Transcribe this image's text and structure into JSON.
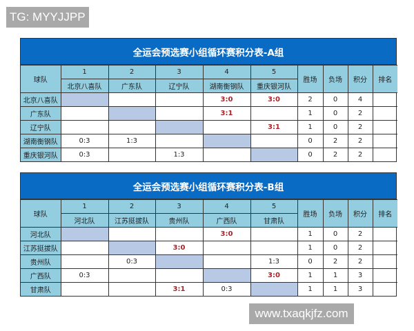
{
  "watermark_top": "TG: MYYJJPP",
  "watermark_bottom": "www.txaqkjfz.com",
  "colors": {
    "title_bg": "#0a6bc4",
    "header_bg": "#93cde0",
    "diagonal": "#b8c9e6",
    "win_score": "#a8222a"
  },
  "headers": {
    "team": "球队",
    "wins": "胜场",
    "losses": "负场",
    "points": "积分",
    "rank": "排名",
    "numbers": [
      "1",
      "2",
      "3",
      "4",
      "5"
    ]
  },
  "tables": [
    {
      "title": "全运会预选赛小组循环赛积分表-A组",
      "teams": [
        "北京八喜队",
        "广东队",
        "辽宁队",
        "湖南衡钢队",
        "重庆银河队"
      ],
      "rows": [
        {
          "team": "北京八喜队",
          "results": [
            "",
            "",
            "",
            "3:0",
            "3:0"
          ],
          "wins": "2",
          "losses": "0",
          "points": "4",
          "rank": ""
        },
        {
          "team": "广东队",
          "results": [
            "",
            "",
            "",
            "3:1",
            ""
          ],
          "wins": "1",
          "losses": "0",
          "points": "2",
          "rank": ""
        },
        {
          "team": "辽宁队",
          "results": [
            "",
            "",
            "",
            "",
            "3:1"
          ],
          "wins": "1",
          "losses": "0",
          "points": "2",
          "rank": ""
        },
        {
          "team": "湖南衡钢队",
          "results": [
            "0:3",
            "1:3",
            "",
            "",
            ""
          ],
          "wins": "0",
          "losses": "2",
          "points": "2",
          "rank": ""
        },
        {
          "team": "重庆银河队",
          "results": [
            "0:3",
            "",
            "1:3",
            "",
            ""
          ],
          "wins": "0",
          "losses": "2",
          "points": "2",
          "rank": ""
        }
      ]
    },
    {
      "title": "全运会预选赛小组循环赛积分表-B组",
      "teams": [
        "河北队",
        "江苏挺拔队",
        "贵州队",
        "广西队",
        "甘肃队"
      ],
      "rows": [
        {
          "team": "河北队",
          "results": [
            "",
            "",
            "",
            "3:0",
            ""
          ],
          "wins": "1",
          "losses": "0",
          "points": "2",
          "rank": ""
        },
        {
          "team": "江苏挺拔队",
          "results": [
            "",
            "",
            "3:0",
            "",
            ""
          ],
          "wins": "1",
          "losses": "0",
          "points": "2",
          "rank": ""
        },
        {
          "team": "贵州队",
          "results": [
            "",
            "0:3",
            "",
            "",
            "1:3"
          ],
          "wins": "0",
          "losses": "2",
          "points": "2",
          "rank": ""
        },
        {
          "team": "广西队",
          "results": [
            "0:3",
            "",
            "",
            "",
            "3:0"
          ],
          "wins": "1",
          "losses": "1",
          "points": "3",
          "rank": ""
        },
        {
          "team": "甘肃队",
          "results": [
            "",
            "",
            "3:1",
            "0:3",
            ""
          ],
          "wins": "1",
          "losses": "1",
          "points": "3",
          "rank": ""
        }
      ]
    }
  ]
}
